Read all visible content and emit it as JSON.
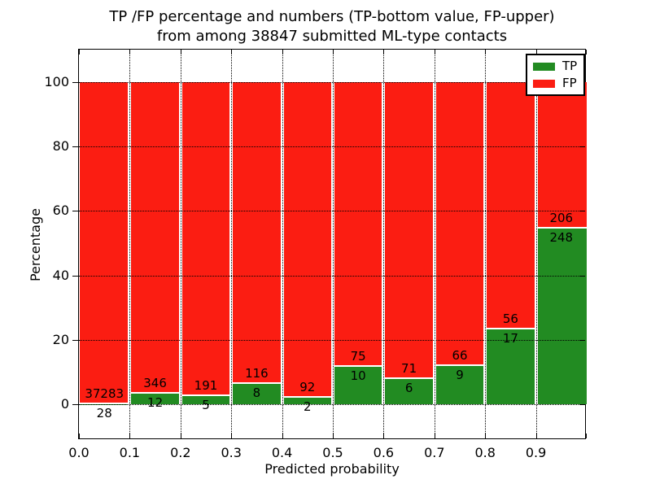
{
  "chart_data": {
    "type": "bar",
    "stacked": true,
    "title_line1": "TP /FP percentage and numbers (TP-bottom value, FP-upper)",
    "title_line2": "from among 38847 submitted ML-type contacts",
    "total_contacts": 38847,
    "xlabel": "Predicted probability",
    "ylabel": "Percentage",
    "categories": [
      "0.0-0.1",
      "0.1-0.2",
      "0.2-0.3",
      "0.3-0.4",
      "0.4-0.5",
      "0.5-0.6",
      "0.6-0.7",
      "0.7-0.8",
      "0.8-0.9",
      "0.9-1.0"
    ],
    "bin_starts": [
      0.0,
      0.1,
      0.2,
      0.3,
      0.4,
      0.5,
      0.6,
      0.7,
      0.8,
      0.9
    ],
    "series": [
      {
        "name": "TP",
        "color": "#228b22",
        "counts": [
          28,
          12,
          5,
          8,
          2,
          10,
          6,
          9,
          17,
          248
        ]
      },
      {
        "name": "FP",
        "color": "#fb1d12",
        "counts": [
          37283,
          346,
          191,
          116,
          92,
          75,
          71,
          66,
          56,
          206
        ]
      }
    ],
    "tp_percentages": [
      0.08,
      3.35,
      2.55,
      6.45,
      2.13,
      11.76,
      7.79,
      12.0,
      23.29,
      54.63
    ],
    "x_tick_labels": [
      "0.0",
      "0.1",
      "0.2",
      "0.3",
      "0.4",
      "0.5",
      "0.6",
      "0.7",
      "0.8",
      "0.9"
    ],
    "y_tick_labels": [
      "0",
      "20",
      "40",
      "60",
      "80",
      "100"
    ],
    "y_tick_values": [
      0,
      20,
      40,
      60,
      80,
      100
    ],
    "xlim": [
      0.0,
      1.0
    ],
    "ylim": [
      -11,
      110
    ],
    "grid": true,
    "legend": {
      "position": "upper right",
      "entries": [
        {
          "label": "TP",
          "color": "#228b22"
        },
        {
          "label": "FP",
          "color": "#fb1d12"
        }
      ]
    }
  }
}
